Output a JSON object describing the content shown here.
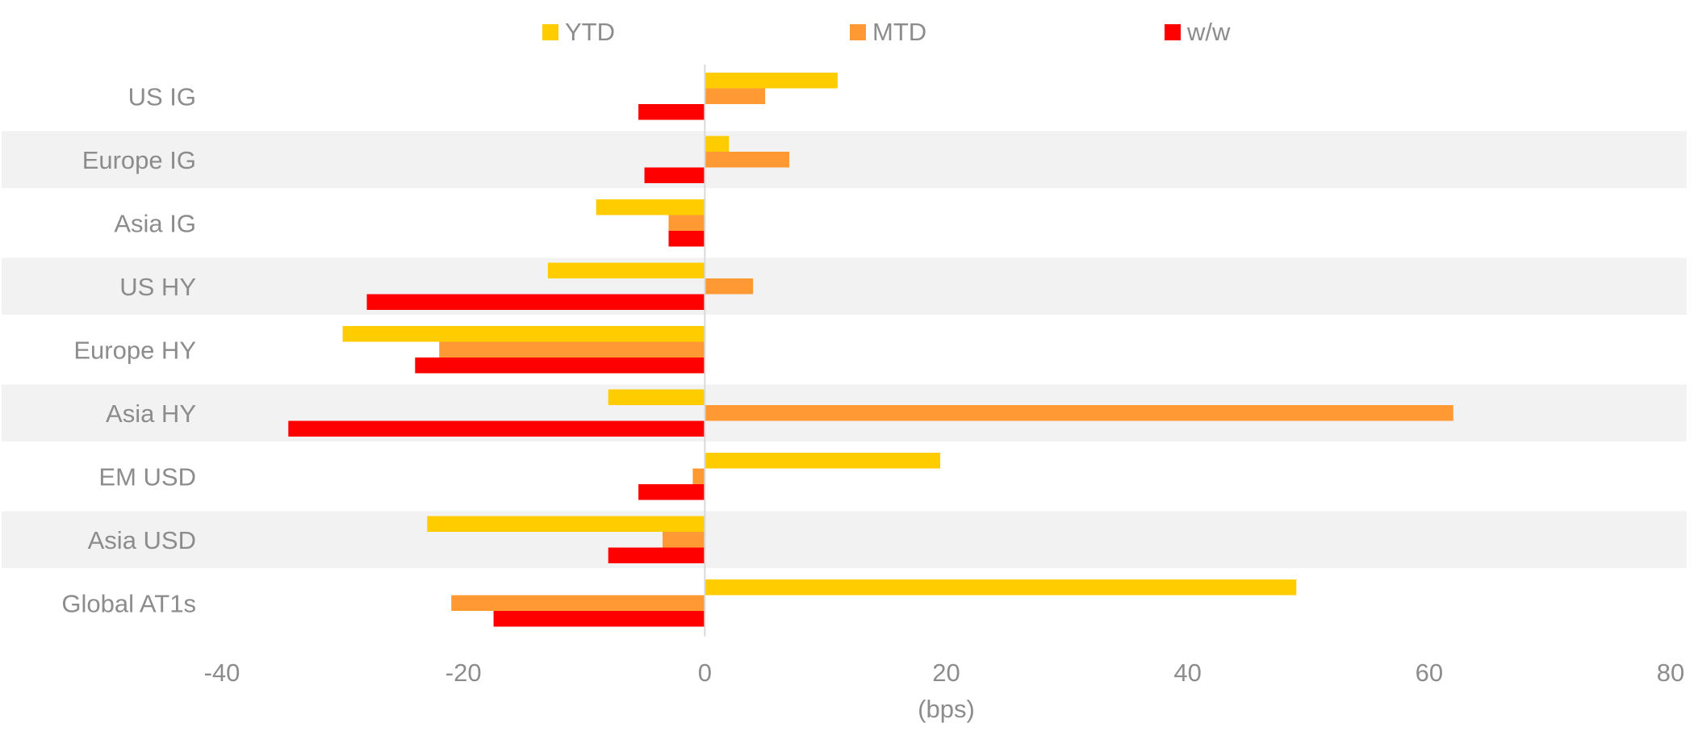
{
  "chart_data": {
    "type": "bar",
    "orientation": "horizontal",
    "categories": [
      "US IG",
      "Europe IG",
      "Asia IG",
      "US HY",
      "Europe HY",
      "Asia HY",
      "EM USD",
      "Asia USD",
      "Global AT1s"
    ],
    "series": [
      {
        "name": "YTD",
        "color": "#ffcc00",
        "values": [
          11,
          2,
          -9,
          -13,
          -30,
          -8,
          19.5,
          -23,
          49
        ]
      },
      {
        "name": "MTD",
        "color": "#ff9933",
        "values": [
          5,
          7,
          -3,
          4,
          -22,
          62,
          -1,
          -3.5,
          -21
        ]
      },
      {
        "name": "w/w",
        "color": "#ff0000",
        "values": [
          -5.5,
          -5,
          -3,
          -28,
          -24,
          -34.5,
          -5.5,
          -8,
          -17.5
        ]
      }
    ],
    "xlabel": "(bps)",
    "xlim": [
      -40,
      80
    ],
    "xticks": [
      -40,
      -20,
      0,
      20,
      40,
      60,
      80
    ],
    "legend_position": "top",
    "alternating_row_bands": true,
    "band_color": "#f2f2f2",
    "zero_line_color": "#d9d9d9"
  }
}
